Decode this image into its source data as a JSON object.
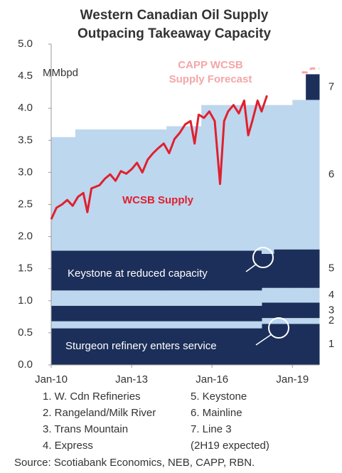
{
  "chart_data": {
    "type": "step-area-line",
    "title": [
      "Western Canadian Oil Supply",
      "Outpacing Takeaway Capacity"
    ],
    "unit": "MMbpd",
    "xlim": [
      2010,
      2020
    ],
    "xticks": [
      {
        "value": 2010,
        "label": "Jan-10"
      },
      {
        "value": 2013,
        "label": "Jan-13"
      },
      {
        "value": 2016,
        "label": "Jan-16"
      },
      {
        "value": 2019,
        "label": "Jan-19"
      }
    ],
    "ylim": [
      0,
      5
    ],
    "yticks": [
      {
        "value": 0,
        "label": "0.0"
      },
      0.5,
      {
        "value": 1,
        "label": "1.0"
      },
      1.5,
      {
        "value": 2,
        "label": "2.0"
      },
      2.5,
      {
        "value": 3,
        "label": "3.0"
      },
      3.5,
      {
        "value": 4,
        "label": "4.0"
      },
      4.5,
      {
        "value": 5,
        "label": "5.0"
      }
    ],
    "capacity_x": [
      2010,
      2010.9,
      2014.3,
      2015.6,
      2017.85,
      2018.3,
      2019.0,
      2019.5
    ],
    "series": [
      {
        "name": "1. W. Cdn Refineries",
        "label": "1",
        "color": "#1c2f5a",
        "values": [
          0.57,
          0.57,
          0.57,
          0.57,
          0.64,
          0.64,
          0.64,
          0.64
        ]
      },
      {
        "name": "2. Rangeland/Milk River",
        "label": "2",
        "color": "#bdd7ee",
        "values": [
          0.11,
          0.11,
          0.11,
          0.11,
          0.09,
          0.09,
          0.09,
          0.09
        ]
      },
      {
        "name": "3. Trans Mountain",
        "label": "3",
        "color": "#1c2f5a",
        "values": [
          0.24,
          0.24,
          0.24,
          0.24,
          0.24,
          0.24,
          0.24,
          0.24
        ]
      },
      {
        "name": "4. Express",
        "label": "4",
        "color": "#bdd7ee",
        "values": [
          0.24,
          0.24,
          0.24,
          0.24,
          0.23,
          0.23,
          0.23,
          0.23
        ]
      },
      {
        "name": "5. Keystone",
        "label": "5",
        "color": "#1c2f5a",
        "values": [
          0.62,
          0.62,
          0.62,
          0.62,
          0.53,
          0.6,
          0.6,
          0.6
        ]
      },
      {
        "name": "6. Mainline",
        "label": "6",
        "color": "#bdd7ee",
        "values": [
          1.77,
          1.89,
          1.94,
          2.27,
          2.32,
          2.25,
          2.33,
          2.33
        ]
      },
      {
        "name": "7. Line 3",
        "label": "7",
        "note": "(2H19 expected)",
        "color": "#1c2f5a",
        "values": [
          0,
          0,
          0,
          0,
          0,
          0,
          0,
          0.4
        ]
      }
    ],
    "lines": [
      {
        "name": "WCSB Supply",
        "color": "#e0202e",
        "dashed": false,
        "x": [
          2010.0,
          2010.2,
          2010.4,
          2010.6,
          2010.8,
          2011.0,
          2011.2,
          2011.35,
          2011.5,
          2011.8,
          2012.0,
          2012.2,
          2012.4,
          2012.6,
          2012.8,
          2013.0,
          2013.2,
          2013.4,
          2013.6,
          2013.8,
          2014.0,
          2014.2,
          2014.4,
          2014.6,
          2014.8,
          2015.0,
          2015.2,
          2015.35,
          2015.5,
          2015.7,
          2015.9,
          2016.1,
          2016.3,
          2016.45,
          2016.6,
          2016.8,
          2017.0,
          2017.2,
          2017.35,
          2017.5,
          2017.7,
          2017.85,
          2018.05
        ],
        "values": [
          2.27,
          2.45,
          2.5,
          2.57,
          2.48,
          2.62,
          2.68,
          2.38,
          2.75,
          2.8,
          2.9,
          2.97,
          2.87,
          3.02,
          2.98,
          3.05,
          3.15,
          3.0,
          3.2,
          3.3,
          3.38,
          3.45,
          3.3,
          3.52,
          3.62,
          3.75,
          3.8,
          3.45,
          3.9,
          3.85,
          3.95,
          3.8,
          2.82,
          3.8,
          3.95,
          4.05,
          3.92,
          4.12,
          3.58,
          3.8,
          4.12,
          3.95,
          4.2
        ]
      },
      {
        "name": [
          "CAPP WCSB",
          "Supply Forecast"
        ],
        "color": "#f4a6a6",
        "dashed": true,
        "x": [
          2019.35,
          2019.55,
          2019.7,
          2020.0
        ],
        "values": [
          4.56,
          4.56,
          4.62,
          4.62
        ]
      }
    ],
    "annotations": [
      "Keystone at reduced capacity",
      "Sturgeon refinery enters service"
    ],
    "source": "Source: Scotiabank Economics, NEB, CAPP, RBN."
  }
}
